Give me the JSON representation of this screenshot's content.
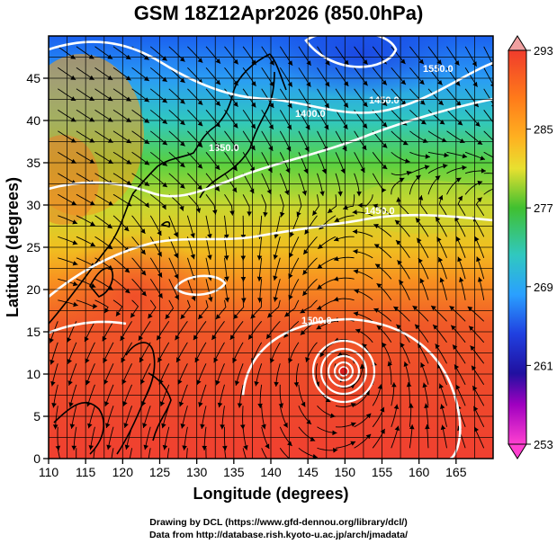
{
  "title": "GSM 18Z12Apr2026 (850.0hPa)",
  "x_axis": {
    "label": "Longitude (degrees)",
    "ticks": [
      "110",
      "115",
      "120",
      "125",
      "130",
      "135",
      "140",
      "145",
      "150",
      "155",
      "160",
      "165"
    ]
  },
  "y_axis": {
    "label": "Latitude  (degrees)",
    "ticks": [
      "0",
      "5",
      "10",
      "15",
      "20",
      "25",
      "30",
      "35",
      "40",
      "45"
    ]
  },
  "colorbar": {
    "ticks": [
      "293",
      "285",
      "277",
      "269",
      "261",
      "253"
    ],
    "colors": [
      "#f03c2c",
      "#ff7a1a",
      "#ffb020",
      "#e8e030",
      "#40c030",
      "#30c8c0",
      "#2aa0ff",
      "#2040e0",
      "#2010a0",
      "#a000c0",
      "#ff40d0"
    ]
  },
  "contour_labels": [
    "1400.0",
    "1450.0",
    "1350.0",
    "1450.0",
    "1500.0",
    "1550.0"
  ],
  "credits": {
    "line1": "Drawing by DCL (https://www.gfd-dennou.org/library/dcl/)",
    "line2": "Data from http://database.rish.kyoto-u.ac.jp/arch/jmadata/"
  },
  "chart_data": {
    "type": "heatmap",
    "title": "GSM 18Z12Apr2026 (850.0hPa)",
    "xlabel": "Longitude (degrees)",
    "ylabel": "Latitude  (degrees)",
    "xlim": [
      110,
      170
    ],
    "ylim": [
      0,
      50
    ],
    "colorbar_range": [
      253,
      293
    ],
    "features": [
      "temperature shading",
      "geopotential height contours",
      "wind streamlines",
      "coastlines",
      "grid"
    ],
    "cyclone_center": {
      "lon": 150,
      "lat": 11
    }
  }
}
